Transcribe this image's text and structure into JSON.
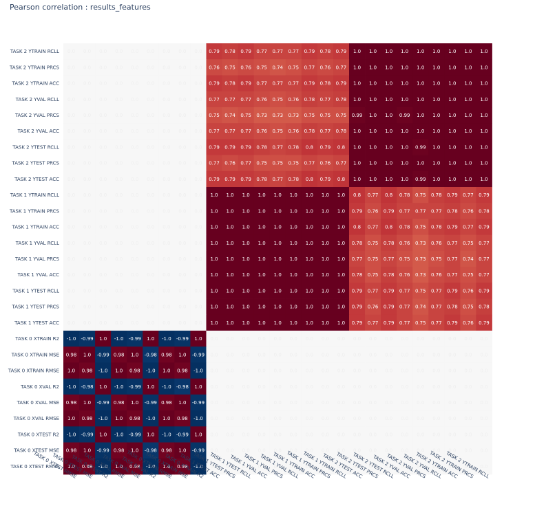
{
  "page": {
    "title": "Pearson correlation : results_features"
  },
  "chart_data": {
    "type": "heatmap",
    "title": "Pearson correlation : results_features",
    "colorscale": {
      "neg": "#053061",
      "zero": "#f7f7f7",
      "pos": "#67001f"
    },
    "zmin": -1,
    "zmax": 1,
    "rows": [
      "TASK 2 YTRAIN RCLL",
      "TASK 2 YTRAIN PRCS",
      "TASK 2 YTRAIN ACC",
      "TASK 2 YVAL RCLL",
      "TASK 2 YVAL PRCS",
      "TASK 2 YVAL ACC",
      "TASK 2 YTEST RCLL",
      "TASK 2 YTEST PRCS",
      "TASK 2 YTEST ACC",
      "TASK 1 YTRAIN RCLL",
      "TASK 1 YTRAIN PRCS",
      "TASK 1 YTRAIN ACC",
      "TASK 1 YVAL RCLL",
      "TASK 1 YVAL PRCS",
      "TASK 1 YVAL ACC",
      "TASK 1 YTEST RCLL",
      "TASK 1 YTEST PRCS",
      "TASK 1 YTEST ACC",
      "TASK 0 XTRAIN R2",
      "TASK 0 XTRAIN MSE",
      "TASK 0 XTRAIN RMSE",
      "TASK 0 XVAL R2",
      "TASK 0 XVAL MSE",
      "TASK 0 XVAL RMSE",
      "TASK 0 XTEST R2",
      "TASK 0 XTEST MSE",
      "TASK 0 XTEST RMSE"
    ],
    "columns": [
      "TASK 0 XTEST RMSE",
      "TASK 0 XTEST MSE",
      "TASK 0 XTEST R2",
      "TASK 0 XVAL RMSE",
      "TASK 0 XVAL MSE",
      "TASK 0 XVAL R2",
      "TASK 0 XTRAIN RMSE",
      "TASK 0 XTRAIN MSE",
      "TASK 0 XTRAIN R2",
      "TASK 1 YTEST ACC",
      "TASK 1 YTEST PRCS",
      "TASK 1 YTEST RCLL",
      "TASK 1 YVAL ACC",
      "TASK 1 YVAL PRCS",
      "TASK 1 YVAL RCLL",
      "TASK 1 YTRAIN ACC",
      "TASK 1 YTRAIN PRCS",
      "TASK 1 YTRAIN RCLL",
      "TASK 2 YTEST ACC",
      "TASK 2 YTEST PRCS",
      "TASK 2 YTEST RCLL",
      "TASK 2 YVAL ACC",
      "TASK 2 YVAL PRCS",
      "TASK 2 YVAL RCLL",
      "TASK 2 YTRAIN ACC",
      "TASK 2 YTRAIN PRCS",
      "TASK 2 YTRAIN RCLL"
    ],
    "values": [
      [
        0,
        0,
        0,
        0,
        0,
        0,
        0,
        0,
        0,
        0.79,
        0.78,
        0.79,
        0.77,
        0.77,
        0.77,
        0.79,
        0.78,
        0.79,
        1.0,
        1.0,
        1.0,
        1.0,
        1.0,
        1.0,
        1.0,
        1.0,
        1.0
      ],
      [
        0,
        0,
        0,
        0,
        0,
        0,
        0,
        0,
        0,
        0.76,
        0.75,
        0.76,
        0.75,
        0.74,
        0.75,
        0.77,
        0.76,
        0.77,
        1.0,
        1.0,
        1.0,
        1.0,
        1.0,
        1.0,
        1.0,
        1.0,
        1.0
      ],
      [
        0,
        0,
        0,
        0,
        0,
        0,
        0,
        0,
        0,
        0.79,
        0.78,
        0.79,
        0.77,
        0.77,
        0.77,
        0.79,
        0.78,
        0.79,
        1.0,
        1.0,
        1.0,
        1.0,
        1.0,
        1.0,
        1.0,
        1.0,
        1.0
      ],
      [
        0,
        0,
        0,
        0,
        0,
        0,
        0,
        0,
        0,
        0.77,
        0.77,
        0.77,
        0.76,
        0.75,
        0.76,
        0.78,
        0.77,
        0.78,
        1.0,
        1.0,
        1.0,
        1.0,
        1.0,
        1.0,
        1.0,
        1.0,
        1.0
      ],
      [
        0,
        0,
        0,
        0,
        0,
        0,
        0,
        0,
        0,
        0.75,
        0.74,
        0.75,
        0.73,
        0.73,
        0.73,
        0.75,
        0.75,
        0.75,
        0.99,
        1.0,
        1.0,
        0.99,
        1.0,
        1.0,
        1.0,
        1.0,
        1.0
      ],
      [
        0,
        0,
        0,
        0,
        0,
        0,
        0,
        0,
        0,
        0.77,
        0.77,
        0.77,
        0.76,
        0.75,
        0.76,
        0.78,
        0.77,
        0.78,
        1.0,
        1.0,
        1.0,
        1.0,
        1.0,
        1.0,
        1.0,
        1.0,
        1.0
      ],
      [
        0,
        0,
        0,
        0,
        0,
        0,
        0,
        0,
        0,
        0.79,
        0.79,
        0.79,
        0.78,
        0.77,
        0.78,
        0.8,
        0.79,
        0.8,
        1.0,
        1.0,
        1.0,
        1.0,
        0.99,
        1.0,
        1.0,
        1.0,
        1.0
      ],
      [
        0,
        0,
        0,
        0,
        0,
        0,
        0,
        0,
        0,
        0.77,
        0.76,
        0.77,
        0.75,
        0.75,
        0.75,
        0.77,
        0.76,
        0.77,
        1.0,
        1.0,
        1.0,
        1.0,
        1.0,
        1.0,
        1.0,
        1.0,
        1.0
      ],
      [
        0,
        0,
        0,
        0,
        0,
        0,
        0,
        0,
        0,
        0.79,
        0.79,
        0.79,
        0.78,
        0.77,
        0.78,
        0.8,
        0.79,
        0.8,
        1.0,
        1.0,
        1.0,
        1.0,
        0.99,
        1.0,
        1.0,
        1.0,
        1.0
      ],
      [
        0,
        0,
        0,
        0,
        0,
        0,
        0,
        0,
        0,
        1.0,
        1.0,
        1.0,
        1.0,
        1.0,
        1.0,
        1.0,
        1.0,
        1.0,
        0.8,
        0.77,
        0.8,
        0.78,
        0.75,
        0.78,
        0.79,
        0.77,
        0.79
      ],
      [
        0,
        0,
        0,
        0,
        0,
        0,
        0,
        0,
        0,
        1.0,
        1.0,
        1.0,
        1.0,
        1.0,
        1.0,
        1.0,
        1.0,
        1.0,
        0.79,
        0.76,
        0.79,
        0.77,
        0.77,
        0.77,
        0.78,
        0.76,
        0.78
      ],
      [
        0,
        0,
        0,
        0,
        0,
        0,
        0,
        0,
        0,
        1.0,
        1.0,
        1.0,
        1.0,
        1.0,
        1.0,
        1.0,
        1.0,
        1.0,
        0.8,
        0.77,
        0.8,
        0.78,
        0.75,
        0.78,
        0.79,
        0.77,
        0.79
      ],
      [
        0,
        0,
        0,
        0,
        0,
        0,
        0,
        0,
        0,
        1.0,
        1.0,
        1.0,
        1.0,
        1.0,
        1.0,
        1.0,
        1.0,
        1.0,
        0.78,
        0.75,
        0.78,
        0.76,
        0.73,
        0.76,
        0.77,
        0.75,
        0.77
      ],
      [
        0,
        0,
        0,
        0,
        0,
        0,
        0,
        0,
        0,
        1.0,
        1.0,
        1.0,
        1.0,
        1.0,
        1.0,
        1.0,
        1.0,
        1.0,
        0.77,
        0.75,
        0.77,
        0.75,
        0.73,
        0.75,
        0.77,
        0.74,
        0.77
      ],
      [
        0,
        0,
        0,
        0,
        0,
        0,
        0,
        0,
        0,
        1.0,
        1.0,
        1.0,
        1.0,
        1.0,
        1.0,
        1.0,
        1.0,
        1.0,
        0.78,
        0.75,
        0.78,
        0.76,
        0.73,
        0.76,
        0.77,
        0.75,
        0.77
      ],
      [
        0,
        0,
        0,
        0,
        0,
        0,
        0,
        0,
        0,
        1.0,
        1.0,
        1.0,
        1.0,
        1.0,
        1.0,
        1.0,
        1.0,
        1.0,
        0.79,
        0.77,
        0.79,
        0.77,
        0.75,
        0.77,
        0.79,
        0.76,
        0.79
      ],
      [
        0,
        0,
        0,
        0,
        0,
        0,
        0,
        0,
        0,
        1.0,
        1.0,
        1.0,
        1.0,
        1.0,
        1.0,
        1.0,
        1.0,
        1.0,
        0.79,
        0.76,
        0.79,
        0.77,
        0.74,
        0.77,
        0.78,
        0.75,
        0.78
      ],
      [
        0,
        0,
        0,
        0,
        0,
        0,
        0,
        0,
        0,
        1.0,
        1.0,
        1.0,
        1.0,
        1.0,
        1.0,
        1.0,
        1.0,
        1.0,
        0.79,
        0.77,
        0.79,
        0.77,
        0.75,
        0.77,
        0.79,
        0.76,
        0.79
      ],
      [
        -1.0,
        -0.99,
        1.0,
        -1.0,
        -0.99,
        1.0,
        -1.0,
        -0.99,
        1.0,
        0,
        0,
        0,
        0,
        0,
        0,
        0,
        0,
        0,
        0,
        0,
        0,
        0,
        0,
        0,
        0,
        0,
        0
      ],
      [
        0.98,
        1.0,
        -0.99,
        0.98,
        1.0,
        -0.98,
        0.98,
        1.0,
        -0.99,
        0,
        0,
        0,
        0,
        0,
        0,
        0,
        0,
        0,
        0,
        0,
        0,
        0,
        0,
        0,
        0,
        0,
        0
      ],
      [
        1.0,
        0.98,
        -1.0,
        1.0,
        0.98,
        -1.0,
        1.0,
        0.98,
        -1.0,
        0,
        0,
        0,
        0,
        0,
        0,
        0,
        0,
        0,
        0,
        0,
        0,
        0,
        0,
        0,
        0,
        0,
        0
      ],
      [
        -1.0,
        -0.98,
        1.0,
        -1.0,
        -0.99,
        1.0,
        -1.0,
        -0.98,
        1.0,
        0,
        0,
        0,
        0,
        0,
        0,
        0,
        0,
        0,
        0,
        0,
        0,
        0,
        0,
        0,
        0,
        0,
        0
      ],
      [
        0.98,
        1.0,
        -0.99,
        0.98,
        1.0,
        -0.99,
        0.98,
        1.0,
        -0.99,
        0,
        0,
        0,
        0,
        0,
        0,
        0,
        0,
        0,
        0,
        0,
        0,
        0,
        0,
        0,
        0,
        0,
        0
      ],
      [
        1.0,
        0.98,
        -1.0,
        1.0,
        0.98,
        -1.0,
        1.0,
        0.98,
        -1.0,
        0,
        0,
        0,
        0,
        0,
        0,
        0,
        0,
        0,
        0,
        0,
        0,
        0,
        0,
        0,
        0,
        0,
        0
      ],
      [
        -1.0,
        -0.99,
        1.0,
        -1.0,
        -0.99,
        1.0,
        -1.0,
        -0.99,
        1.0,
        0,
        0,
        0,
        0,
        0,
        0,
        0,
        0,
        0,
        0,
        0,
        0,
        0,
        0,
        0,
        0,
        0,
        0
      ],
      [
        0.98,
        1.0,
        -0.99,
        0.98,
        1.0,
        -0.98,
        0.98,
        1.0,
        -0.99,
        0,
        0,
        0,
        0,
        0,
        0,
        0,
        0,
        0,
        0,
        0,
        0,
        0,
        0,
        0,
        0,
        0,
        0
      ],
      [
        1.0,
        0.98,
        -1.0,
        1.0,
        0.98,
        -1.0,
        1.0,
        0.98,
        -1.0,
        0,
        0,
        0,
        0,
        0,
        0,
        0,
        0,
        0,
        0,
        0,
        0,
        0,
        0,
        0,
        0,
        0,
        0
      ]
    ],
    "legend": "none",
    "grid": false
  }
}
